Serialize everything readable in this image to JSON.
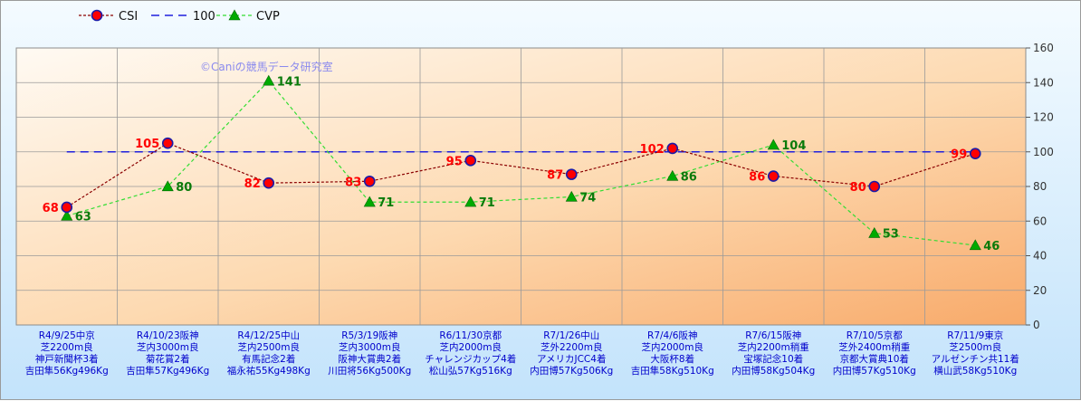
{
  "chart_data": {
    "type": "line",
    "categories": [
      [
        "R4/9/25中京",
        "芝2200m良",
        "神戸新聞杯3着",
        "吉田隼56Kg496Kg"
      ],
      [
        "R4/10/23阪神",
        "芝内3000m良",
        "菊花賞2着",
        "吉田隼57Kg496Kg"
      ],
      [
        "R4/12/25中山",
        "芝内2500m良",
        "有馬記念2着",
        "福永祐55Kg498Kg"
      ],
      [
        "R5/3/19阪神",
        "芝内3000m良",
        "阪神大賞典2着",
        "川田将56Kg500Kg"
      ],
      [
        "R6/11/30京都",
        "芝内2000m良",
        "チャレンジカップ4着",
        "松山弘57Kg516Kg"
      ],
      [
        "R7/1/26中山",
        "芝外2200m良",
        "アメリカJCC4着",
        "内田博57Kg506Kg"
      ],
      [
        "R7/4/6阪神",
        "芝内2000m良",
        "大阪杯8着",
        "吉田隼58Kg510Kg"
      ],
      [
        "R7/6/15阪神",
        "芝内2200m稍重",
        "宝塚記念10着",
        "内田博58Kg504Kg"
      ],
      [
        "R7/10/5京都",
        "芝外2400m稍重",
        "京都大賞典10着",
        "内田博57Kg510Kg"
      ],
      [
        "R7/11/9東京",
        "芝2500m良",
        "アルゼンチン共11着",
        "横山武58Kg510Kg"
      ]
    ],
    "series": [
      {
        "name": "CSI",
        "values": [
          68,
          105,
          82,
          83,
          95,
          87,
          102,
          86,
          80,
          99
        ],
        "color": "#8b0000",
        "marker_color": "#ff0000"
      },
      {
        "name": "100",
        "values": [
          100,
          100,
          100,
          100,
          100,
          100,
          100,
          100,
          100,
          100
        ],
        "color": "#1f1fdd"
      },
      {
        "name": "CVP",
        "values": [
          63,
          80,
          141,
          71,
          71,
          74,
          86,
          104,
          53,
          46
        ],
        "color": "#33dd33",
        "marker_color": "#00aa00"
      }
    ],
    "ylim": [
      0,
      160
    ],
    "yticks": [
      0,
      20,
      40,
      60,
      80,
      100,
      120,
      140,
      160
    ],
    "y_axis_side": "right",
    "grid": true,
    "legend_position": "top-left",
    "annotation": "©Caniの競馬データ研究室"
  }
}
